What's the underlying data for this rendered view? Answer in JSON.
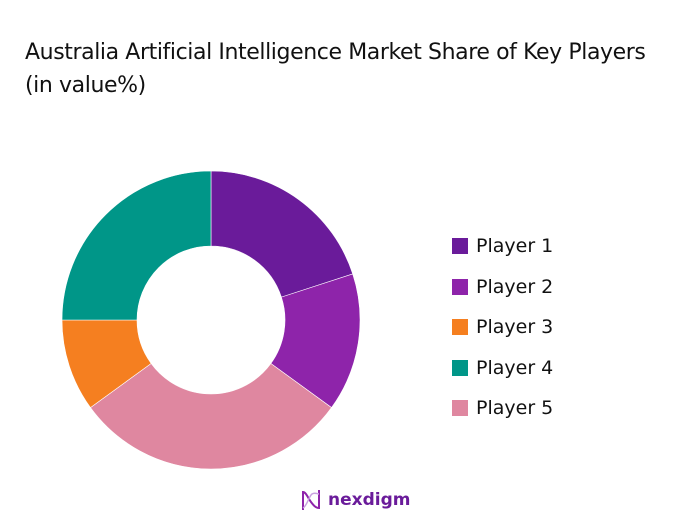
{
  "chart_data": {
    "type": "pie",
    "subtype": "donut",
    "title": "Australia Artificial Intelligence Market Share of Key Players (in value%)",
    "categories": [
      "Player 1",
      "Player 2",
      "Player 3",
      "Player 4",
      "Player 5"
    ],
    "values": [
      20,
      15,
      10,
      25,
      30
    ],
    "colors": [
      "#6a1b9a",
      "#8e24aa",
      "#f57f20",
      "#009688",
      "#df87a0"
    ],
    "slice_order_clockwise_from_top": [
      "Player 1",
      "Player 2",
      "Player 5",
      "Player 3",
      "Player 4"
    ],
    "legend_position": "right",
    "data_labels": false
  },
  "title": "Australia Artificial Intelligence Market Share of Key Players (in value%)",
  "legend": {
    "items": [
      {
        "label": "Player 1",
        "color": "#6a1b9a"
      },
      {
        "label": "Player 2",
        "color": "#8e24aa"
      },
      {
        "label": "Player 3",
        "color": "#f57f20"
      },
      {
        "label": "Player 4",
        "color": "#009688"
      },
      {
        "label": "Player 5",
        "color": "#df87a0"
      }
    ]
  },
  "brand": {
    "name": "nexdigm",
    "color": "#6a1b9a"
  }
}
